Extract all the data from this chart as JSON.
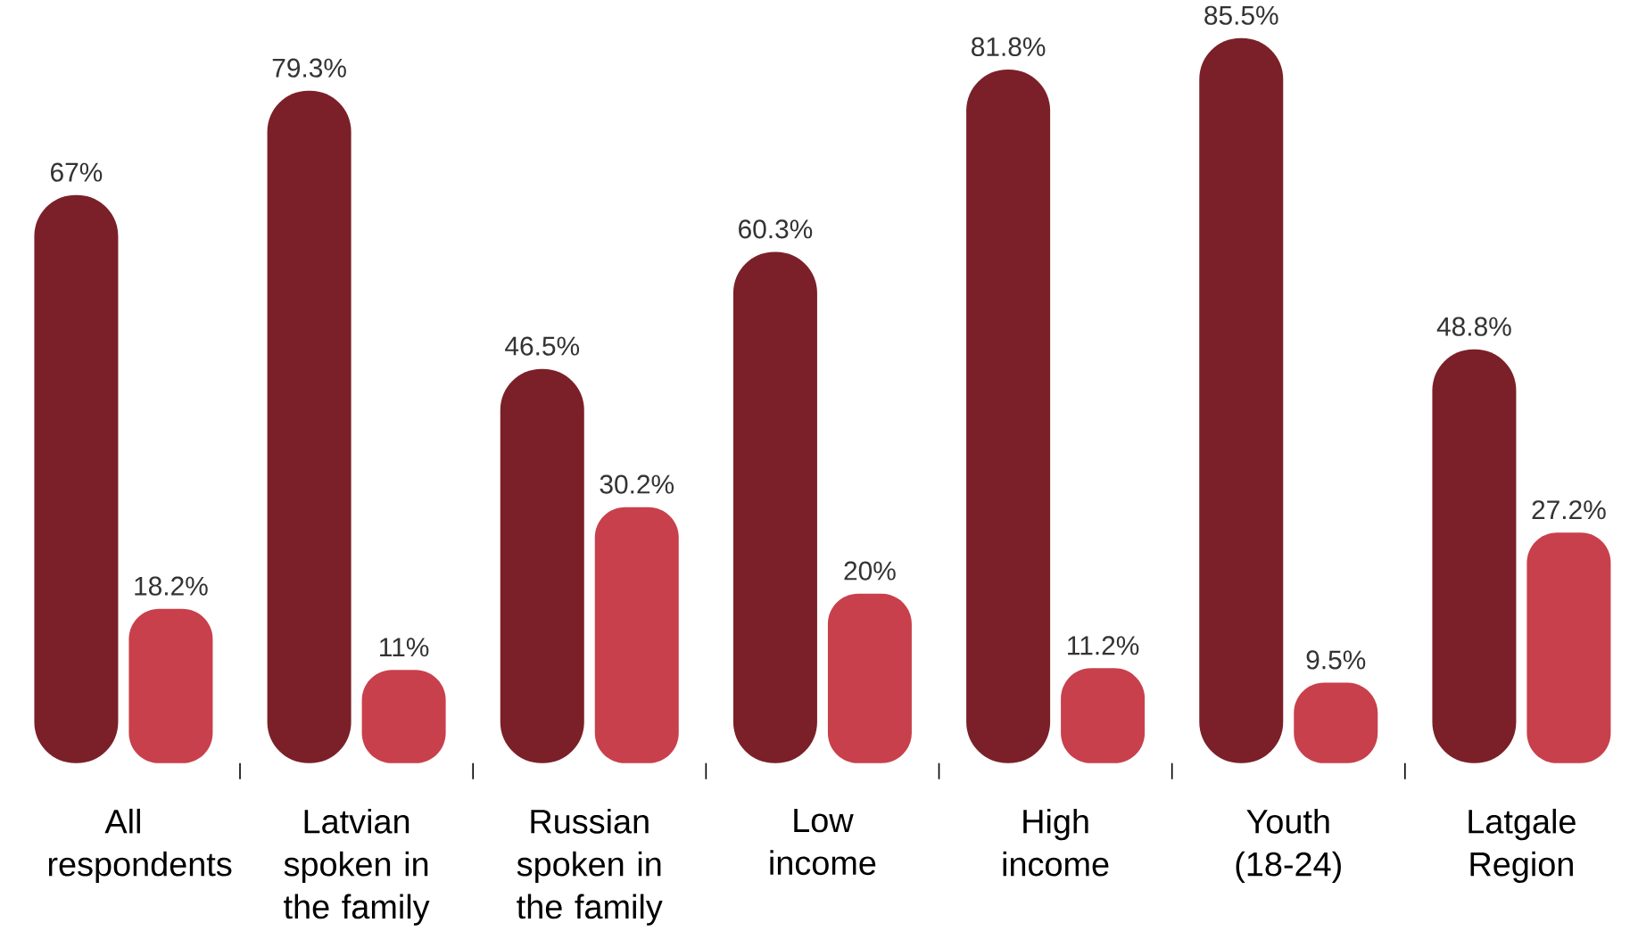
{
  "chart_data": {
    "type": "bar",
    "categories": [
      "All respondents",
      "Latvian spoken in the family",
      "Russian spoken in the family",
      "Low income",
      "High income",
      "Youth (18-24)",
      "Latgale Region"
    ],
    "series": [
      {
        "color": "#7b2028",
        "values": [
          67,
          79.3,
          46.5,
          60.3,
          81.8,
          85.5,
          48.8
        ],
        "value_labels": [
          "67%",
          "79.3%",
          "46.5%",
          "60.3%",
          "81.8%",
          "85.5%",
          "48.8%"
        ]
      },
      {
        "color": "#c8404b",
        "values": [
          18.2,
          11,
          30.2,
          20,
          11.2,
          9.5,
          27.2
        ],
        "value_labels": [
          "18.2%",
          "11%",
          "30.2%",
          "20%",
          "11.2%",
          "9.5%",
          "27.2%"
        ]
      }
    ]
  }
}
